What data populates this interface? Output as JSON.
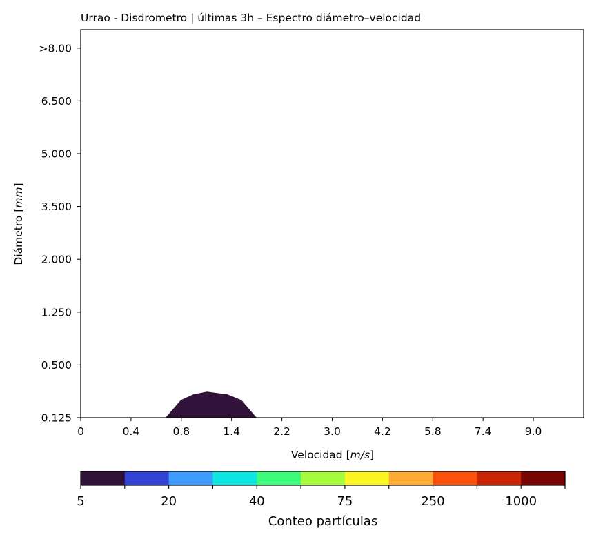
{
  "chart_data": {
    "type": "heatmap",
    "title": "Urrao - Disdrometro | últimas 3h – Espectro diámetro–velocidad",
    "xlabel_prefix": "Velocidad [",
    "xlabel_unit": "m/s",
    "xlabel_suffix": "]",
    "ylabel_prefix": "Diámetro [",
    "ylabel_unit": "mm",
    "ylabel_suffix": "]",
    "x_ticks": [
      "0",
      "0.4",
      "0.8",
      "1.4",
      "2.2",
      "3.0",
      "4.2",
      "5.8",
      "7.4",
      "9.0"
    ],
    "y_ticks": [
      "0.125",
      "0.500",
      "1.250",
      "2.000",
      "3.500",
      "5.000",
      "6.500",
      ">8.00"
    ],
    "grid": false,
    "filled_region": {
      "color_level": "5",
      "velocity_bins": [
        "0.7",
        "0.8",
        "1.0",
        "1.2",
        "1.4",
        "1.6",
        "1.8"
      ],
      "diameter_upper_mm": [
        0.125,
        0.25,
        0.29,
        0.31,
        0.29,
        0.25,
        0.125
      ]
    },
    "colorbar": {
      "label": "Conteo partículas",
      "tick_labels": [
        "5",
        "20",
        "40",
        "75",
        "250",
        "1000"
      ],
      "colors": [
        "#30123b",
        "#3243d6",
        "#3d9cfe",
        "#0ce6e0",
        "#3dfb7b",
        "#a4fc3c",
        "#fbf522",
        "#feab34",
        "#fc510b",
        "#c92403",
        "#7a0403"
      ]
    }
  }
}
